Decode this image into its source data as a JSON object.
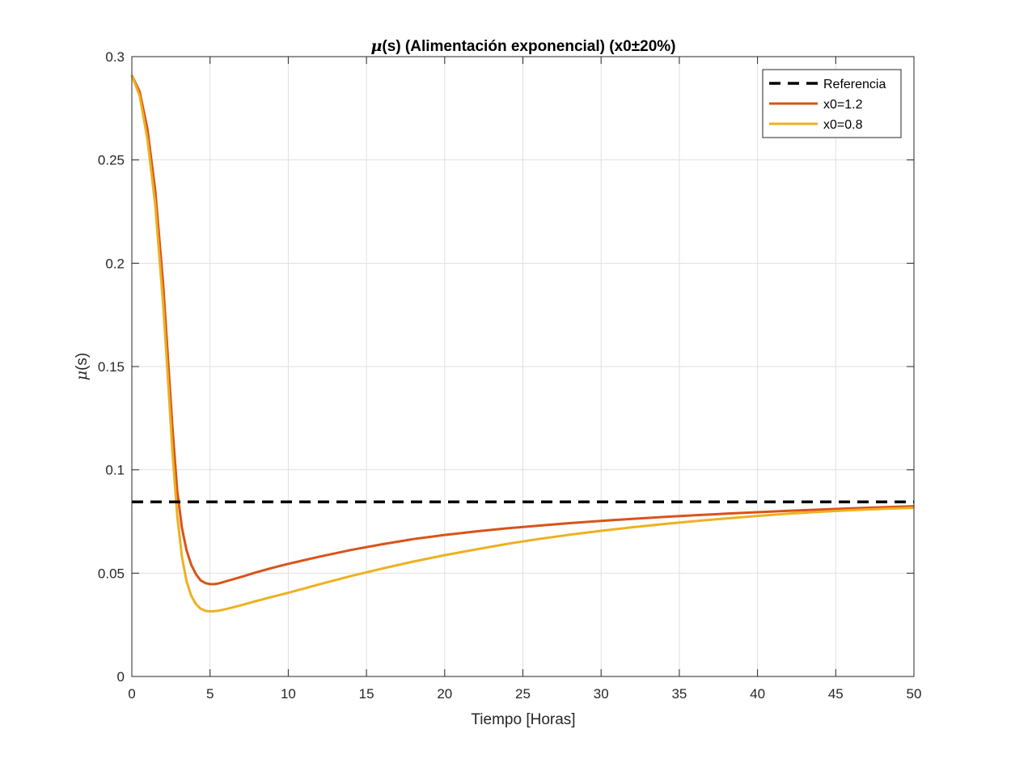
{
  "chart_data": {
    "type": "line",
    "title": "μ(s) (Alimentación exponencial) (x0±20%)",
    "title_mu": "μ",
    "title_rest": "(s) (Alimentación exponencial) (x0±20%)",
    "xlabel": "Tiempo [Horas]",
    "ylabel": "μ(s)",
    "ylabel_mu": "μ",
    "ylabel_rest": "(s)",
    "xlim": [
      0,
      50
    ],
    "ylim": [
      0,
      0.3
    ],
    "xticks": [
      0,
      5,
      10,
      15,
      20,
      25,
      30,
      35,
      40,
      45,
      50
    ],
    "xtick_labels": [
      "0",
      "5",
      "10",
      "15",
      "20",
      "25",
      "30",
      "35",
      "40",
      "45",
      "50"
    ],
    "yticks": [
      0,
      0.05,
      0.1,
      0.15,
      0.2,
      0.25,
      0.3
    ],
    "ytick_labels": [
      "0",
      "0.05",
      "0.1",
      "0.15",
      "0.2",
      "0.25",
      "0.3"
    ],
    "grid": true,
    "legend_position": "top-right",
    "series": [
      {
        "name": "Referencia",
        "color": "#000000",
        "dash": true,
        "x": [
          0,
          50
        ],
        "y": [
          0.0845,
          0.0845
        ]
      },
      {
        "name": "x0=1.2",
        "color": "#D95319",
        "dash": false,
        "x": [
          0,
          0.5,
          1.0,
          1.5,
          2.0,
          2.3,
          2.6,
          2.9,
          3.2,
          3.5,
          3.8,
          4.1,
          4.4,
          4.7,
          5.0,
          5.3,
          5.6,
          6.0,
          7,
          8,
          9,
          10,
          12,
          14,
          16,
          18,
          20,
          22,
          24,
          26,
          28,
          30,
          32,
          34,
          36,
          38,
          40,
          42,
          44,
          46,
          48,
          50
        ],
        "y": [
          0.291,
          0.283,
          0.265,
          0.235,
          0.19,
          0.155,
          0.12,
          0.09,
          0.072,
          0.061,
          0.054,
          0.0495,
          0.0465,
          0.0452,
          0.0447,
          0.0447,
          0.0451,
          0.046,
          0.0482,
          0.0505,
          0.0526,
          0.0545,
          0.058,
          0.0612,
          0.064,
          0.0665,
          0.0685,
          0.0702,
          0.0717,
          0.073,
          0.0742,
          0.0753,
          0.0763,
          0.0772,
          0.078,
          0.0788,
          0.0795,
          0.0802,
          0.0808,
          0.0814,
          0.0819,
          0.0824
        ]
      },
      {
        "name": "x0=0.8",
        "color": "#EDB120",
        "dash": false,
        "x": [
          0,
          0.5,
          1.0,
          1.5,
          2.0,
          2.3,
          2.6,
          2.9,
          3.2,
          3.5,
          3.8,
          4.1,
          4.4,
          4.7,
          5.0,
          5.3,
          5.6,
          6.0,
          7,
          8,
          9,
          10,
          12,
          14,
          16,
          18,
          20,
          22,
          24,
          26,
          28,
          30,
          32,
          34,
          36,
          38,
          40,
          42,
          44,
          46,
          48,
          50
        ],
        "y": [
          0.291,
          0.281,
          0.26,
          0.228,
          0.18,
          0.145,
          0.108,
          0.078,
          0.058,
          0.046,
          0.039,
          0.035,
          0.0328,
          0.0318,
          0.0315,
          0.0316,
          0.0319,
          0.0326,
          0.0345,
          0.0366,
          0.0386,
          0.0405,
          0.0446,
          0.0486,
          0.0522,
          0.0556,
          0.0587,
          0.0615,
          0.0642,
          0.0665,
          0.0686,
          0.0705,
          0.0722,
          0.0738,
          0.0752,
          0.0765,
          0.0777,
          0.0788,
          0.0797,
          0.0805,
          0.0811,
          0.0816
        ]
      }
    ]
  }
}
